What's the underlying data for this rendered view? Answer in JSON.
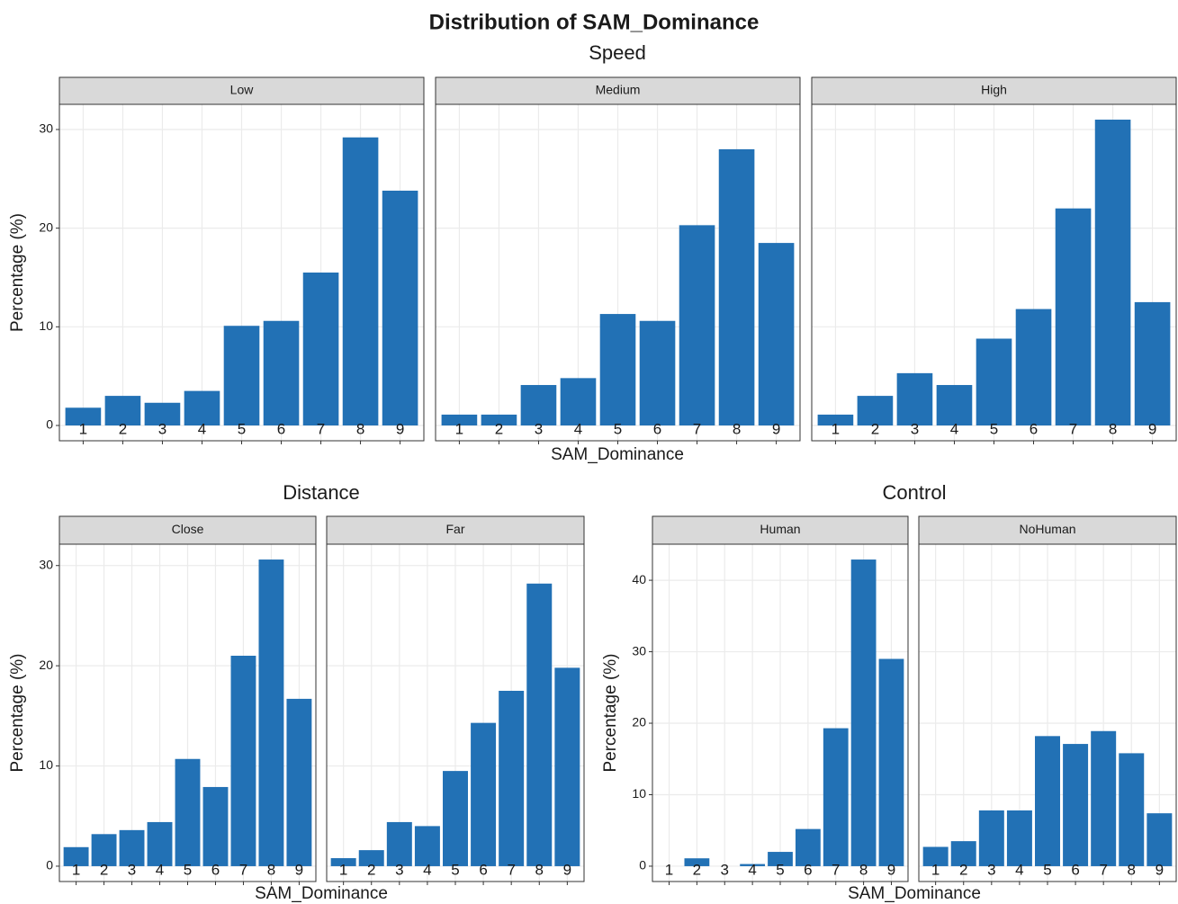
{
  "title": "Distribution of SAM_Dominance",
  "chart_data": [
    {
      "type": "bar",
      "title": "Speed",
      "xlabel": "SAM_Dominance",
      "ylabel": "Percentage (%)",
      "categories": [
        1,
        2,
        3,
        4,
        5,
        6,
        7,
        8,
        9
      ],
      "series": [
        {
          "name": "Low",
          "color": "#2271b5",
          "values": [
            1.8,
            3.0,
            2.3,
            3.5,
            10.1,
            10.6,
            15.5,
            29.2,
            23.8
          ]
        },
        {
          "name": "Medium",
          "color": "#2271b5",
          "values": [
            1.1,
            1.1,
            4.1,
            4.8,
            11.3,
            10.6,
            20.3,
            28.0,
            18.5
          ]
        },
        {
          "name": "High",
          "color": "#2271b5",
          "values": [
            1.1,
            3.0,
            5.3,
            4.1,
            8.8,
            11.8,
            22.0,
            31.0,
            12.5
          ]
        }
      ],
      "ylim": [
        -1.55,
        32.55
      ],
      "yticks": [
        0,
        10,
        20,
        30
      ],
      "grid": true
    },
    {
      "type": "bar",
      "title": "Distance",
      "xlabel": "SAM_Dominance",
      "ylabel": "Percentage (%)",
      "categories": [
        1,
        2,
        3,
        4,
        5,
        6,
        7,
        8,
        9
      ],
      "series": [
        {
          "name": "Close",
          "color": "#2271b5",
          "values": [
            1.9,
            3.2,
            3.6,
            4.4,
            10.7,
            7.9,
            21.0,
            30.6,
            16.7
          ]
        },
        {
          "name": "Far",
          "color": "#2271b5",
          "values": [
            0.8,
            1.6,
            4.4,
            4.0,
            9.5,
            14.3,
            17.5,
            28.2,
            19.8
          ]
        }
      ],
      "ylim": [
        -1.53,
        32.13
      ],
      "yticks": [
        0,
        10,
        20,
        30
      ],
      "grid": true
    },
    {
      "type": "bar",
      "title": "Control",
      "xlabel": "SAM_Dominance",
      "ylabel": "Percentage (%)",
      "categories": [
        1,
        2,
        3,
        4,
        5,
        6,
        7,
        8,
        9
      ],
      "series": [
        {
          "name": "Human",
          "color": "#2271b5",
          "values": [
            0,
            1.1,
            0,
            0.3,
            2.0,
            5.2,
            19.3,
            42.9,
            29.0
          ]
        },
        {
          "name": "NoHuman",
          "color": "#2271b5",
          "values": [
            2.7,
            3.5,
            7.8,
            7.8,
            18.2,
            17.1,
            18.9,
            15.8,
            7.4
          ]
        }
      ],
      "ylim": [
        -2.145,
        45.045
      ],
      "yticks": [
        0,
        10,
        20,
        30,
        40
      ],
      "grid": true
    }
  ]
}
